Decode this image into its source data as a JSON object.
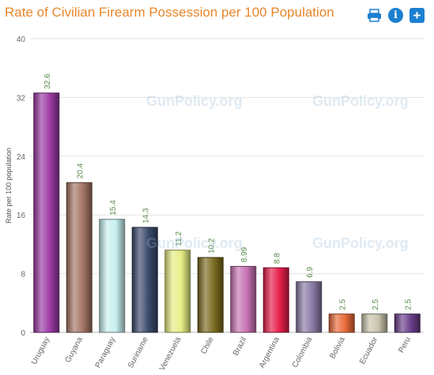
{
  "header": {
    "title": "Rate of Civilian Firearm Possession per 100 Population"
  },
  "toolbar": {
    "print_icon": "printer-icon",
    "info_icon": "info-icon",
    "info_label": "i",
    "add_icon": "plus-icon",
    "add_label": "+"
  },
  "watermark": "GunPolicy.org",
  "chart_data": {
    "type": "bar",
    "title": "Rate of Civilian Firearm Possession per 100 Population",
    "ylabel": "Rate per 100 population",
    "xlabel": "",
    "ylim": [
      0,
      40
    ],
    "yticks": [
      0,
      8,
      16,
      24,
      32,
      40
    ],
    "grid": true,
    "categories": [
      "Uruguay",
      "Guyana",
      "Paraguay",
      "Suriname",
      "Venezuela",
      "Chile",
      "Brazil",
      "Argentina",
      "Colombia",
      "Bolivia",
      "Ecuador",
      "Peru"
    ],
    "values": [
      32.6,
      20.4,
      15.4,
      14.3,
      11.2,
      10.2,
      8.99,
      8.8,
      6.9,
      2.5,
      2.5,
      2.5
    ],
    "value_labels": [
      "32.6",
      "20.4",
      "15.4",
      "14.3",
      "11.2",
      "10.2",
      "8.99",
      "8.8",
      "6.9",
      "2.5",
      "2.5",
      "2.5"
    ],
    "colors": [
      "#9b3aa3",
      "#a47565",
      "#c8f0f0",
      "#3b4a6a",
      "#e7ee84",
      "#7a6a1e",
      "#c873b4",
      "#e61e4a",
      "#8a7aa5",
      "#ea6a3a",
      "#c9c5ad",
      "#6a3e8a"
    ]
  }
}
